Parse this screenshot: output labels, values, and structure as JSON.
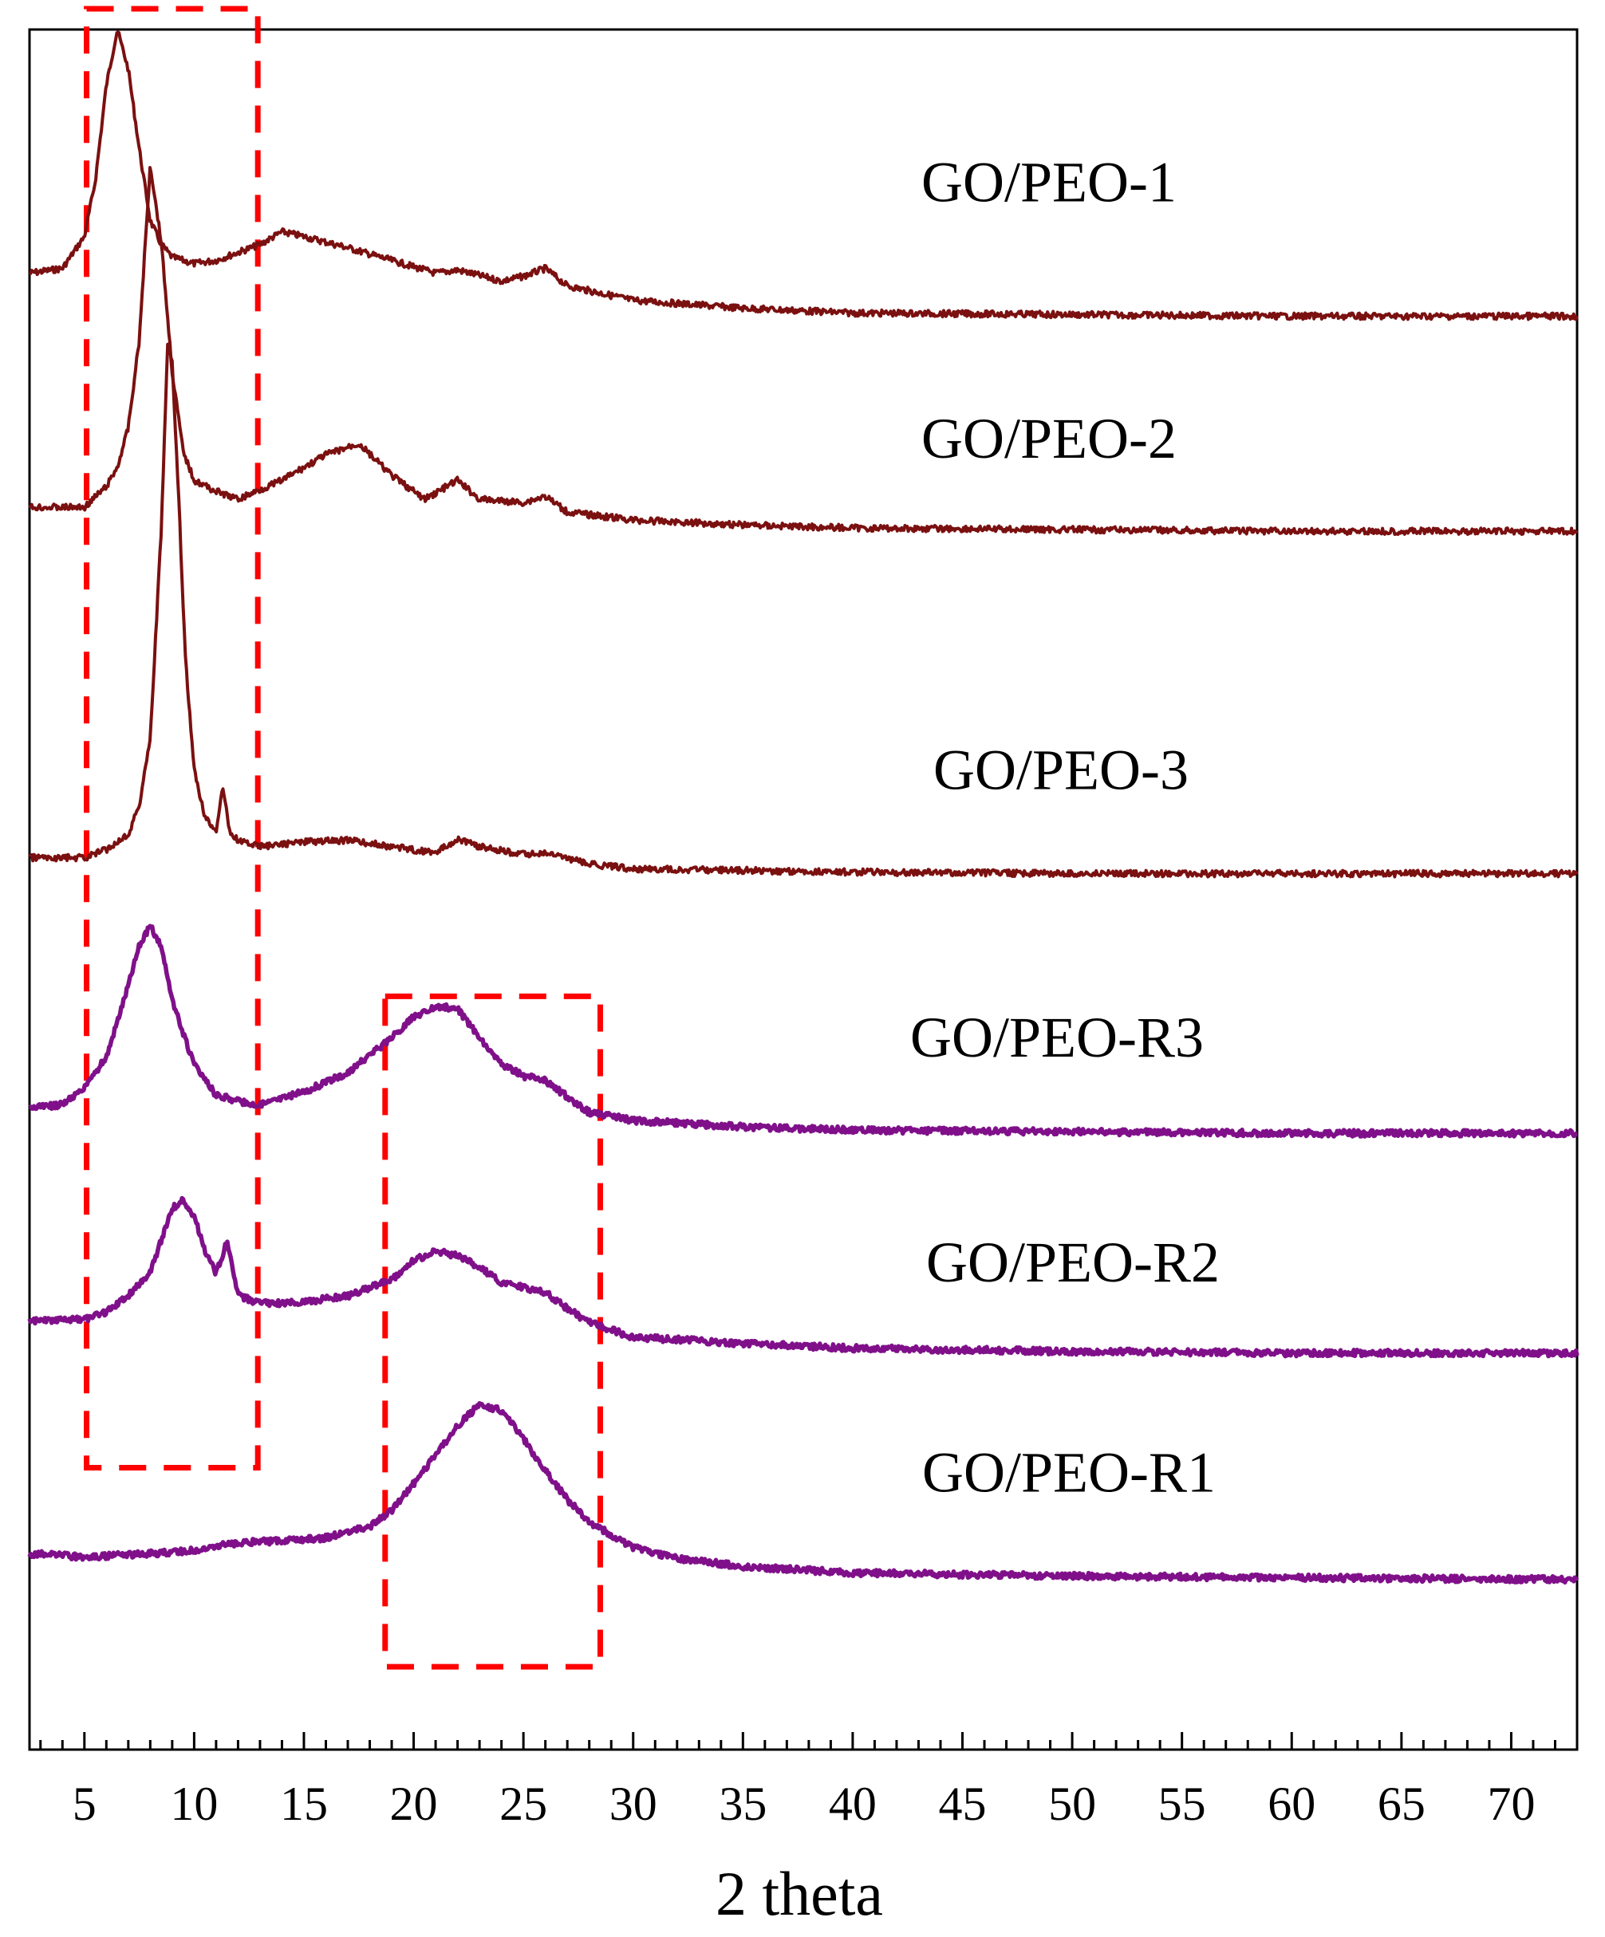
{
  "chart_data": {
    "type": "line",
    "title": "",
    "xlabel": "2 theta",
    "ylabel": "",
    "xlim": [
      2.5,
      73
    ],
    "ylim": [
      -0.25,
      10.55
    ],
    "x_ticks": [
      5,
      10,
      15,
      20,
      25,
      30,
      35,
      40,
      45,
      50,
      55,
      60,
      65,
      70
    ],
    "x_tick_labels": [
      "5",
      "10",
      "15",
      "20",
      "25",
      "30",
      "35",
      "40",
      "45",
      "50",
      "55",
      "60",
      "65",
      "70"
    ],
    "grid": false,
    "legend": "inline labels to the right of each trace",
    "colors": {
      "go_peo": "#7b1010",
      "go_peo_r": "#80108a",
      "box": "#ff0000"
    },
    "series": [
      {
        "name": "GO/PEO-1",
        "label": "GO/PEO-1",
        "color": "#7b1010",
        "baseline": 8.75,
        "x": [
          2.5,
          4,
          5,
          5.5,
          6,
          6.5,
          7,
          7.5,
          8,
          8.5,
          9,
          10,
          11,
          12,
          13,
          14,
          15,
          17,
          19,
          21,
          22,
          24,
          25,
          26,
          27,
          30,
          35,
          40,
          50,
          60,
          70,
          73
        ],
        "y": [
          9.02,
          9.05,
          9.25,
          9.6,
          10.2,
          10.55,
          10.3,
          9.8,
          9.35,
          9.2,
          9.12,
          9.08,
          9.1,
          9.15,
          9.2,
          9.28,
          9.25,
          9.18,
          9.1,
          9.02,
          9.04,
          8.97,
          9.0,
          9.05,
          8.94,
          8.85,
          8.8,
          8.77,
          8.76,
          8.75,
          8.75,
          8.75
        ]
      },
      {
        "name": "GO/PEO-2",
        "label": "GO/PEO-2",
        "color": "#7b1010",
        "baseline": 7.4,
        "x": [
          2.5,
          5,
          6,
          6.5,
          7,
          7.5,
          8,
          8.5,
          9,
          9.5,
          10,
          11,
          12,
          14,
          16,
          17.5,
          19,
          20.5,
          22,
          23,
          25,
          26,
          27,
          30,
          35,
          40,
          50,
          60,
          70,
          73
        ],
        "y": [
          7.55,
          7.55,
          7.68,
          7.8,
          8.05,
          8.6,
          9.7,
          9.22,
          8.4,
          7.9,
          7.72,
          7.65,
          7.6,
          7.72,
          7.88,
          7.95,
          7.75,
          7.6,
          7.72,
          7.6,
          7.58,
          7.62,
          7.52,
          7.47,
          7.44,
          7.42,
          7.41,
          7.4,
          7.4,
          7.4
        ]
      },
      {
        "name": "GO/PEO-3",
        "label": "GO/PEO-3",
        "color": "#7b1010",
        "baseline": 5.25,
        "x": [
          2.5,
          5,
          6,
          7,
          7.5,
          8,
          8.5,
          8.8,
          9,
          9.3,
          9.6,
          10,
          10.5,
          11,
          11.3,
          11.6,
          12,
          13,
          15,
          17,
          19,
          21,
          22,
          23,
          25,
          26,
          28,
          30,
          35,
          40,
          50,
          60,
          70,
          73
        ],
        "y": [
          5.35,
          5.35,
          5.4,
          5.5,
          5.68,
          6.1,
          7.4,
          8.6,
          8.45,
          7.6,
          6.6,
          5.9,
          5.6,
          5.52,
          5.8,
          5.52,
          5.46,
          5.42,
          5.45,
          5.46,
          5.42,
          5.38,
          5.47,
          5.42,
          5.37,
          5.38,
          5.31,
          5.28,
          5.27,
          5.26,
          5.25,
          5.25,
          5.25,
          5.25
        ]
      },
      {
        "name": "GO/PEO-R3",
        "label": "GO/PEO-R3",
        "color": "#80108a",
        "baseline": 3.62,
        "x": [
          2.5,
          4,
          5,
          6,
          7,
          7.5,
          8,
          8.5,
          9,
          10,
          11,
          12,
          13,
          15,
          17,
          19,
          20,
          21,
          22,
          23,
          24,
          25,
          26,
          27,
          28,
          30,
          35,
          40,
          50,
          60,
          70,
          73
        ],
        "y": [
          3.78,
          3.8,
          3.9,
          4.1,
          4.55,
          4.8,
          4.92,
          4.8,
          4.45,
          4.05,
          3.86,
          3.82,
          3.8,
          3.88,
          4.0,
          4.22,
          4.35,
          4.42,
          4.4,
          4.22,
          4.05,
          3.98,
          3.95,
          3.85,
          3.75,
          3.7,
          3.66,
          3.64,
          3.63,
          3.62,
          3.62,
          3.62
        ]
      },
      {
        "name": "GO/PEO-R2",
        "label": "GO/PEO-R2",
        "color": "#80108a",
        "baseline": 2.24,
        "x": [
          2.5,
          5,
          6,
          7,
          8,
          8.5,
          9,
          9.5,
          10,
          10.5,
          11,
          11.5,
          12,
          13,
          15,
          17,
          19,
          20,
          21,
          22,
          23,
          24,
          25,
          26,
          27,
          28,
          30,
          35,
          40,
          50,
          60,
          70,
          73
        ],
        "y": [
          2.44,
          2.45,
          2.5,
          2.6,
          2.75,
          2.95,
          3.15,
          3.2,
          3.1,
          2.88,
          2.74,
          2.94,
          2.6,
          2.55,
          2.56,
          2.6,
          2.7,
          2.82,
          2.88,
          2.85,
          2.78,
          2.68,
          2.65,
          2.62,
          2.52,
          2.43,
          2.34,
          2.3,
          2.27,
          2.25,
          2.24,
          2.24,
          2.24
        ]
      },
      {
        "name": "GO/PEO-R1",
        "label": "GO/PEO-R1",
        "color": "#80108a",
        "baseline": 0.82,
        "x": [
          2.5,
          5,
          8,
          10,
          12,
          14,
          16,
          18,
          19,
          20,
          21,
          22,
          23,
          24,
          25,
          26,
          27,
          28,
          30,
          32,
          35,
          40,
          50,
          60,
          70,
          73
        ],
        "y": [
          0.98,
          0.96,
          0.98,
          1.0,
          1.05,
          1.06,
          1.08,
          1.15,
          1.25,
          1.42,
          1.6,
          1.78,
          1.92,
          1.88,
          1.7,
          1.5,
          1.32,
          1.18,
          1.02,
          0.95,
          0.9,
          0.86,
          0.84,
          0.83,
          0.82,
          0.82
        ]
      }
    ],
    "annotations": [
      {
        "type": "dashed_box",
        "x_range": [
          5.1,
          12.9
        ],
        "y_range": [
          1.52,
          10.68
        ]
      },
      {
        "type": "dashed_box",
        "x_range": [
          18.7,
          28.5
        ],
        "y_range": [
          0.27,
          4.48
        ]
      }
    ]
  }
}
